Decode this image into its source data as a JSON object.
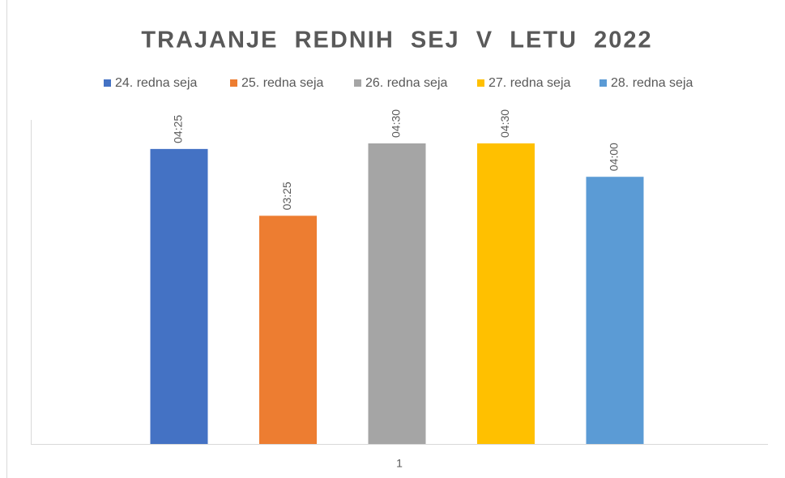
{
  "chart_data": {
    "type": "bar",
    "title": "TRAJANJE  REDNIH  SEJ  V  LETU  2022",
    "categories": [
      "1"
    ],
    "series": [
      {
        "name": "24. redna seja",
        "color": "#4472c4",
        "values": [
          265
        ],
        "value_labels": [
          "04:25"
        ]
      },
      {
        "name": "25. redna seja",
        "color": "#ed7d31",
        "values": [
          205
        ],
        "value_labels": [
          "03:25"
        ]
      },
      {
        "name": "26. redna seja",
        "color": "#a5a5a5",
        "values": [
          270
        ],
        "value_labels": [
          "04:30"
        ]
      },
      {
        "name": "27. redna seja",
        "color": "#ffc000",
        "values": [
          270
        ],
        "value_labels": [
          "04:30"
        ]
      },
      {
        "name": "28. redna seja",
        "color": "#5b9bd5",
        "values": [
          240
        ],
        "value_labels": [
          "04:00"
        ]
      }
    ],
    "ylim": [
      0,
      300
    ],
    "legend": "top"
  }
}
